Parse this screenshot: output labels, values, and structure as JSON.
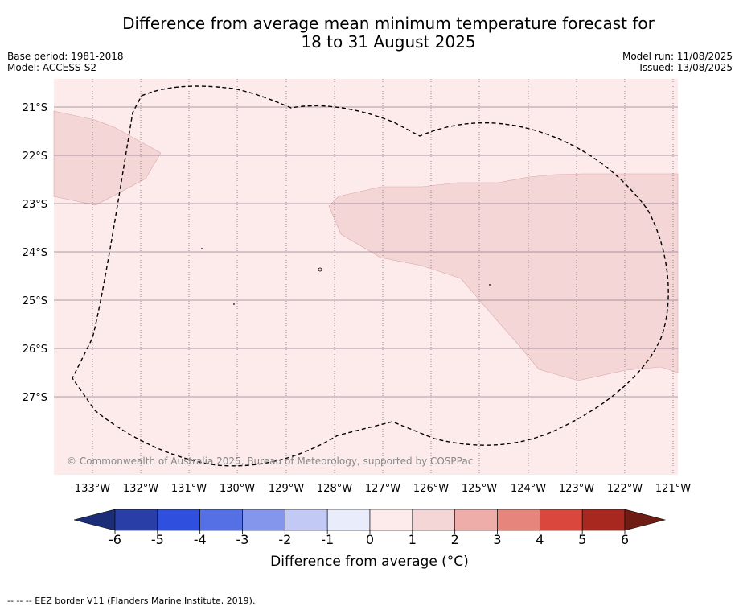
{
  "title_line1": "Difference from average mean minimum temperature forecast for",
  "title_line2": "18 to 31 August 2025",
  "base_period": "Base period: 1981-2018",
  "model": "Model: ACCESS-S2",
  "model_run": "Model run: 11/08/2025",
  "issued": "Issued: 13/08/2025",
  "copyright": "© Commonwealth of Australia 2025, Bureau of Meteorology, supported by COSPPac",
  "lat_labels": [
    "21°S",
    "22°S",
    "23°S",
    "24°S",
    "25°S",
    "26°S",
    "27°S"
  ],
  "lon_labels": [
    "133°W",
    "132°W",
    "131°W",
    "130°W",
    "129°W",
    "128°W",
    "127°W",
    "126°W",
    "125°W",
    "124°W",
    "123°W",
    "122°W",
    "121°W"
  ],
  "colorbar": {
    "ticks": [
      "-6",
      "-5",
      "-4",
      "-3",
      "-2",
      "-1",
      "0",
      "1",
      "2",
      "3",
      "4",
      "5",
      "6"
    ],
    "colors": [
      "#2a3ea8",
      "#2f4fde",
      "#5470e4",
      "#8396ec",
      "#c2c9f5",
      "#e9ecfb",
      "#fcebea",
      "#f5d6d6",
      "#eeada8",
      "#e6857c",
      "#d9473d",
      "#a8281f"
    ],
    "under_color": "#1c2d78",
    "over_color": "#6f1d14",
    "label": "Difference from average (°C)"
  },
  "map_colors": {
    "background": "#fcebea",
    "anomaly_1_to_2": "#f5d6d6",
    "graticule": "#5a4a66",
    "eez_border": "#000000"
  },
  "footer_legend": "--  --  -- EEZ border V11 (Flanders Marine Institute, 2019)."
}
